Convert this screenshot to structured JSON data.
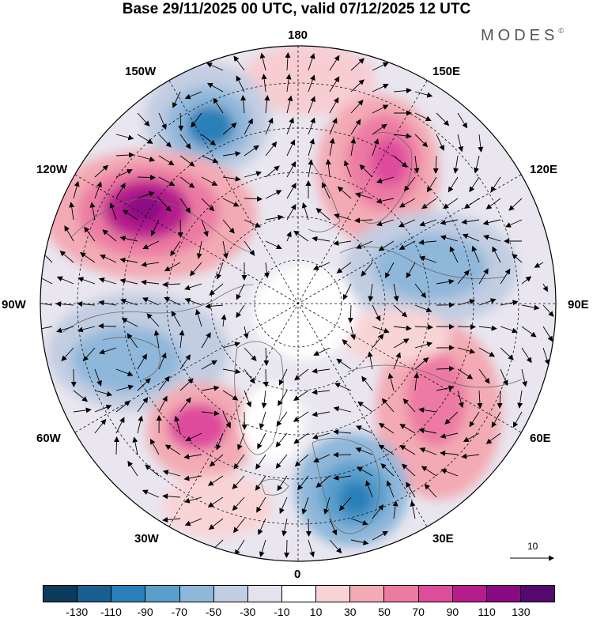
{
  "title": "Base 29/11/2025 00 UTC, valid 07/12/2025 12 UTC",
  "brand": {
    "name": "MODES",
    "mark": "©"
  },
  "longitude_labels": {
    "deg180": "180",
    "deg150e": "150E",
    "deg120e": "120E",
    "deg90e": "90E",
    "deg60e": "60E",
    "deg30e": "30E",
    "deg0": "0",
    "deg30w": "30W",
    "deg60w": "60W",
    "deg90w": "90W",
    "deg120w": "120W",
    "deg150w": "150W"
  },
  "reference_vector": {
    "value": "10"
  },
  "colorbar": {
    "colors": [
      "#0e3a5c",
      "#195f91",
      "#2b7fb8",
      "#5a9fcc",
      "#8fb7da",
      "#c2cde2",
      "#e3e3ef",
      "#ffffff",
      "#f9d4d6",
      "#f3aab4",
      "#ec7aa3",
      "#de4c9c",
      "#b71c8c",
      "#8a0a83",
      "#55086e"
    ],
    "ticks": [
      "-130",
      "-110",
      "-90",
      "-70",
      "-50",
      "-30",
      "-10",
      "10",
      "30",
      "50",
      "70",
      "90",
      "110",
      "130"
    ]
  },
  "anomaly_centers": [
    {
      "region": "north-pacific-150w",
      "sign": "negative",
      "value": -95
    },
    {
      "region": "alaska-125w",
      "sign": "positive",
      "value": 120
    },
    {
      "region": "kamchatka-150e",
      "sign": "positive",
      "value": 95
    },
    {
      "region": "east-siberia-110e",
      "sign": "negative",
      "value": -60
    },
    {
      "region": "hudson-bay-80w",
      "sign": "negative",
      "value": -65
    },
    {
      "region": "north-atlantic-50w",
      "sign": "positive",
      "value": 90
    },
    {
      "region": "russia-60e",
      "sign": "positive",
      "value": 80
    },
    {
      "region": "scandinavia-20e",
      "sign": "negative",
      "value": -95
    }
  ]
}
